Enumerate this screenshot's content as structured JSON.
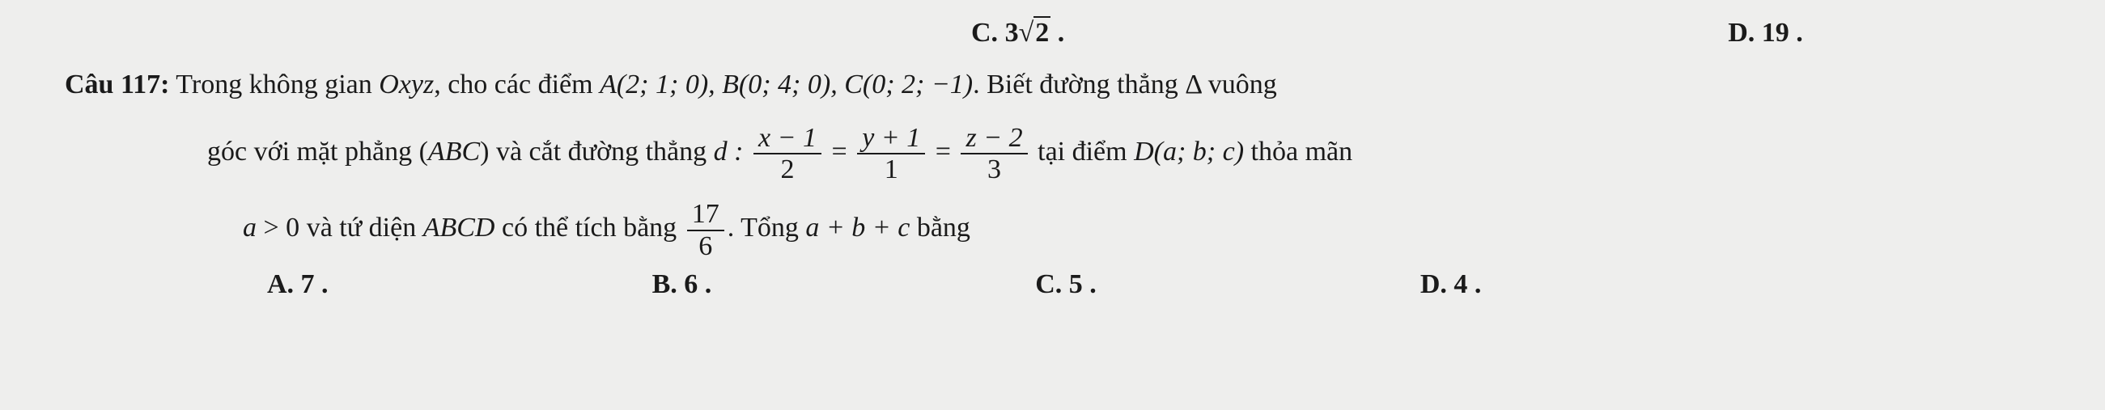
{
  "top_choices": {
    "C_label": "C.",
    "C_value_prefix": "3",
    "C_value_radicand": "2",
    "C_tail": " .",
    "D_label": "D.",
    "D_value": " 19 ."
  },
  "question": {
    "number_label": "Câu 117:",
    "line1_a": " Trong không gian ",
    "oxyz": "Oxyz",
    "line1_b": ", cho các điểm ",
    "points": "A(2; 1; 0), B(0; 4; 0), C(0; 2; −1)",
    "line1_c": ". Biết đường thẳng Δ vuông",
    "line2_a": "góc với mặt phẳng (",
    "abc": "ABC",
    "line2_b": ") và cắt đường thẳng ",
    "d_label": "d :",
    "eq_f1_num": "x − 1",
    "eq_f1_den": "2",
    "eq_eq1": " = ",
    "eq_f2_num": "y + 1",
    "eq_f2_den": "1",
    "eq_eq2": " = ",
    "eq_f3_num": "z − 2",
    "eq_f3_den": "3",
    "line2_c": " tại điểm ",
    "point_D": "D(a; b; c)",
    "line2_d": " thỏa mãn",
    "line3_a_pre": "a",
    "line3_a_gt": " > 0",
    "line3_b": " và tứ diện ",
    "abcd": "ABCD",
    "line3_c": " có thể tích bằng ",
    "vol_num": "17",
    "vol_den": "6",
    "line3_d": ". Tổng ",
    "sum_expr": "a + b + c",
    "line3_e": " bằng"
  },
  "answers": {
    "A": "A. 7 .",
    "B": "B. 6 .",
    "C": "C. 5 .",
    "D": "D. 4 ."
  },
  "colors": {
    "background": "#eeeeed",
    "text": "#1a1a1a"
  },
  "typography": {
    "font_family": "Times New Roman",
    "base_fontsize_pt": 26
  }
}
